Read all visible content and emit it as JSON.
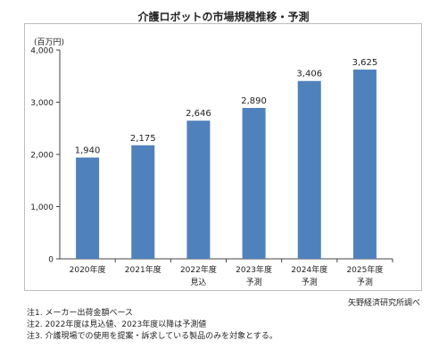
{
  "chart_data": {
    "type": "bar",
    "title": "介護ロボットの市場規模推移・予測",
    "unit_label": "(百万円)",
    "categories": [
      "2020年度",
      "2021年度",
      "2022年度",
      "2023年度",
      "2024年度",
      "2025年度"
    ],
    "category_sublabels": [
      "",
      "",
      "見込",
      "予測",
      "予測",
      "予測"
    ],
    "values": [
      1940,
      2175,
      2646,
      2890,
      3406,
      3625
    ],
    "value_labels": [
      "1,940",
      "2,175",
      "2,646",
      "2,890",
      "3,406",
      "3,625"
    ],
    "ylim": [
      0,
      4000
    ],
    "yticks": [
      0,
      1000,
      2000,
      3000,
      4000
    ],
    "ytick_labels": [
      "0",
      "1,000",
      "2,000",
      "3,000",
      "4,000"
    ],
    "bar_color": "#4f81bd",
    "grid": false,
    "legend": "none"
  },
  "source": "矢野経済研究所調べ",
  "notes": [
    "注1. メーカー出荷金額ベース",
    "注2. 2022年度は見込値、2023年度以降は予測値",
    "注3. 介護現場での使用を提案・訴求している製品のみを対象とする。"
  ]
}
